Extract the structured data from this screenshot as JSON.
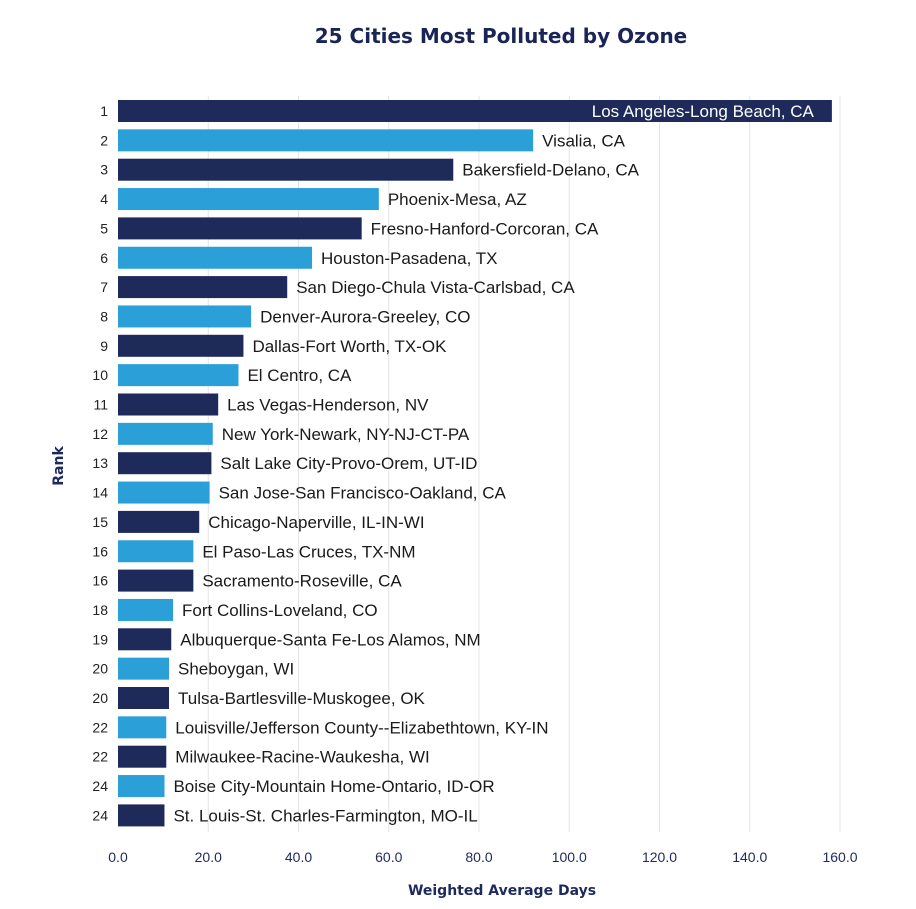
{
  "chart_data": {
    "type": "bar",
    "orientation": "horizontal",
    "title": "25 Cities Most Polluted by Ozone",
    "xlabel": "Weighted Average Days",
    "ylabel": "Rank",
    "xlim": [
      0,
      160
    ],
    "xticks": [
      "0.0",
      "20.0",
      "40.0",
      "60.0",
      "80.0",
      "100.0",
      "120.0",
      "140.0",
      "160.0"
    ],
    "grid": true,
    "colors": {
      "dark": "#1d2a5a",
      "light": "#2a9fd8"
    },
    "rows": [
      {
        "rank": "1",
        "category": "Los Angeles-Long Beach, CA",
        "value": 158.2
      },
      {
        "rank": "2",
        "category": "Visalia, CA",
        "value": 92.0
      },
      {
        "rank": "3",
        "category": "Bakersfield-Delano, CA",
        "value": 74.3
      },
      {
        "rank": "4",
        "category": "Phoenix-Mesa, AZ",
        "value": 57.8
      },
      {
        "rank": "5",
        "category": "Fresno-Hanford-Corcoran, CA",
        "value": 54.0
      },
      {
        "rank": "6",
        "category": "Houston-Pasadena, TX",
        "value": 43.0
      },
      {
        "rank": "7",
        "category": "San Diego-Chula Vista-Carlsbad, CA",
        "value": 37.5
      },
      {
        "rank": "8",
        "category": "Denver-Aurora-Greeley, CO",
        "value": 29.5
      },
      {
        "rank": "9",
        "category": "Dallas-Fort Worth, TX-OK",
        "value": 27.8
      },
      {
        "rank": "10",
        "category": "El Centro, CA",
        "value": 26.7
      },
      {
        "rank": "11",
        "category": "Las Vegas-Henderson, NV",
        "value": 22.2
      },
      {
        "rank": "12",
        "category": "New York-Newark, NY-NJ-CT-PA",
        "value": 21.0
      },
      {
        "rank": "13",
        "category": "Salt Lake City-Provo-Orem, UT-ID",
        "value": 20.7
      },
      {
        "rank": "14",
        "category": "San Jose-San Francisco-Oakland, CA",
        "value": 20.3
      },
      {
        "rank": "15",
        "category": "Chicago-Naperville, IL-IN-WI",
        "value": 18.0
      },
      {
        "rank": "16",
        "category": "El Paso-Las Cruces, TX-NM",
        "value": 16.7
      },
      {
        "rank": "16",
        "category": "Sacramento-Roseville, CA",
        "value": 16.7
      },
      {
        "rank": "18",
        "category": "Fort Collins-Loveland, CO",
        "value": 12.2
      },
      {
        "rank": "19",
        "category": "Albuquerque-Santa Fe-Los Alamos, NM",
        "value": 11.8
      },
      {
        "rank": "20",
        "category": "Sheboygan, WI",
        "value": 11.3
      },
      {
        "rank": "20",
        "category": "Tulsa-Bartlesville-Muskogee, OK",
        "value": 11.3
      },
      {
        "rank": "22",
        "category": "Louisville/Jefferson County--Elizabethtown, KY-IN",
        "value": 10.7
      },
      {
        "rank": "22",
        "category": "Milwaukee-Racine-Waukesha, WI",
        "value": 10.7
      },
      {
        "rank": "24",
        "category": "Boise City-Mountain Home-Ontario, ID-OR",
        "value": 10.3
      },
      {
        "rank": "24",
        "category": "St. Louis-St. Charles-Farmington, MO-IL",
        "value": 10.3
      }
    ]
  }
}
